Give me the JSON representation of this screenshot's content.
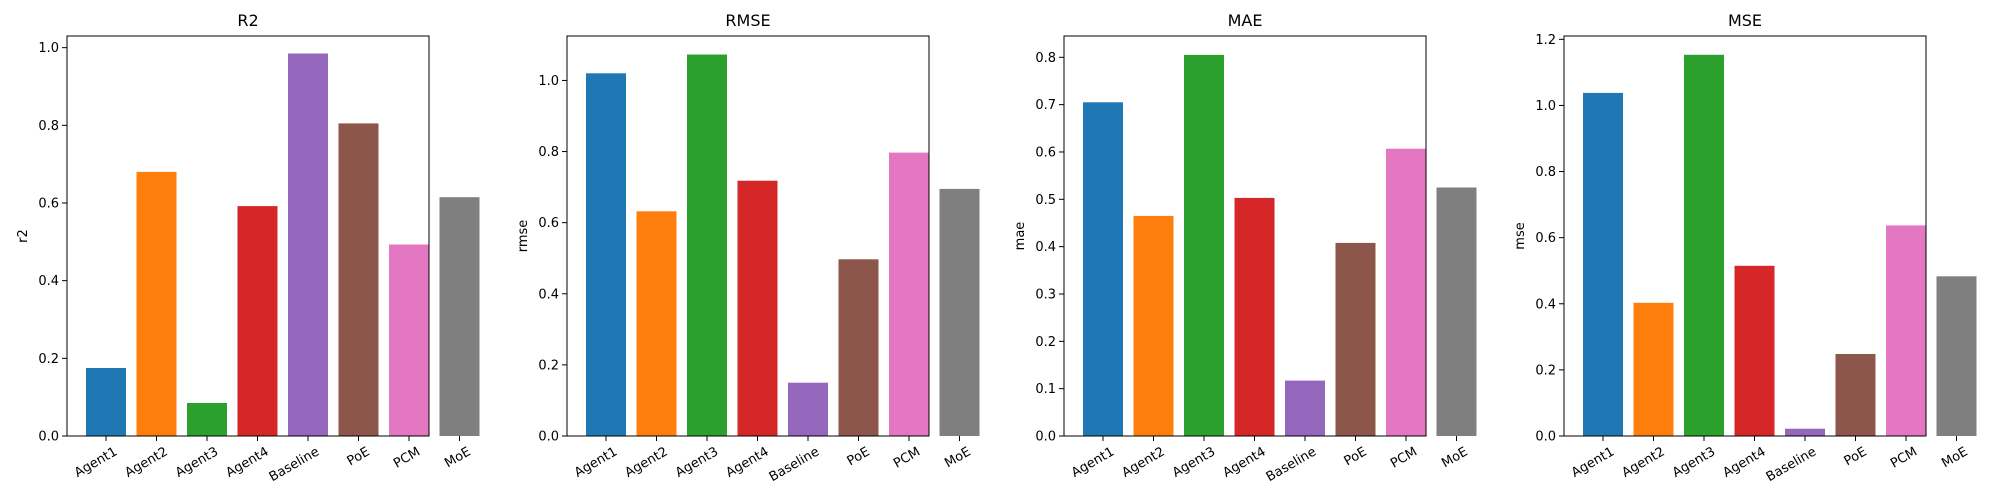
{
  "chart_data": [
    {
      "type": "bar",
      "title": "R2",
      "xlabel": "",
      "ylabel": "r2",
      "categories": [
        "Agent1",
        "Agent2",
        "Agent3",
        "Agent4",
        "Baseline",
        "PoE",
        "PCM",
        "MoE"
      ],
      "values": [
        0.175,
        0.68,
        0.085,
        0.592,
        0.985,
        0.805,
        0.493,
        0.615
      ],
      "ylim": [
        0,
        1.03
      ],
      "yticks": [
        0.0,
        0.2,
        0.4,
        0.6,
        0.8,
        1.0
      ],
      "ytick_labels": [
        "0.0",
        "0.2",
        "0.4",
        "0.6",
        "0.8",
        "1.0"
      ],
      "grid": false
    },
    {
      "type": "bar",
      "title": "RMSE",
      "xlabel": "",
      "ylabel": "rmse",
      "categories": [
        "Agent1",
        "Agent2",
        "Agent3",
        "Agent4",
        "Baseline",
        "PoE",
        "PCM",
        "MoE"
      ],
      "values": [
        1.02,
        0.632,
        1.073,
        0.718,
        0.15,
        0.497,
        0.797,
        0.695
      ],
      "ylim": [
        0,
        1.125
      ],
      "yticks": [
        0.0,
        0.2,
        0.4,
        0.6,
        0.8,
        1.0
      ],
      "ytick_labels": [
        "0.0",
        "0.2",
        "0.4",
        "0.6",
        "0.8",
        "1.0"
      ],
      "grid": false
    },
    {
      "type": "bar",
      "title": "MAE",
      "xlabel": "",
      "ylabel": "mae",
      "categories": [
        "Agent1",
        "Agent2",
        "Agent3",
        "Agent4",
        "Baseline",
        "PoE",
        "PCM",
        "MoE"
      ],
      "values": [
        0.705,
        0.465,
        0.805,
        0.503,
        0.117,
        0.408,
        0.607,
        0.525
      ],
      "ylim": [
        0,
        0.845
      ],
      "yticks": [
        0.0,
        0.1,
        0.2,
        0.3,
        0.4,
        0.5,
        0.6,
        0.7,
        0.8
      ],
      "ytick_labels": [
        "0.0",
        "0.1",
        "0.2",
        "0.3",
        "0.4",
        "0.5",
        "0.6",
        "0.7",
        "0.8"
      ],
      "grid": false
    },
    {
      "type": "bar",
      "title": "MSE",
      "xlabel": "",
      "ylabel": "mse",
      "categories": [
        "Agent1",
        "Agent2",
        "Agent3",
        "Agent4",
        "Baseline",
        "PoE",
        "PCM",
        "MoE"
      ],
      "values": [
        1.038,
        0.403,
        1.153,
        0.515,
        0.022,
        0.248,
        0.637,
        0.483
      ],
      "ylim": [
        0,
        1.21
      ],
      "yticks": [
        0.0,
        0.2,
        0.4,
        0.6,
        0.8,
        1.0,
        1.2
      ],
      "ytick_labels": [
        "0.0",
        "0.2",
        "0.4",
        "0.6",
        "0.8",
        "1.0",
        "1.2"
      ],
      "grid": false
    }
  ],
  "colors": [
    "#1f77b4",
    "#ff7f0e",
    "#2ca02c",
    "#d62728",
    "#9467bd",
    "#8c564b",
    "#e377c2",
    "#7f7f7f"
  ]
}
